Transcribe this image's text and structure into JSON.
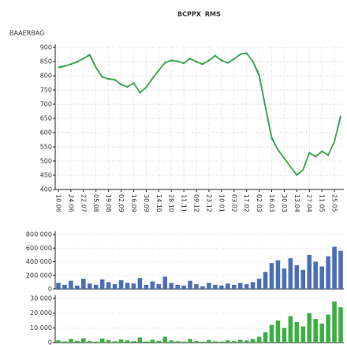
{
  "chart_data": [
    {
      "type": "line",
      "ylabel": "BAAERBAG",
      "categories": [
        "10.06",
        null,
        "24.06",
        null,
        "22.07",
        null,
        "05.08",
        null,
        "19.08",
        null,
        "02.09",
        null,
        "16.09",
        null,
        "30.09",
        null,
        "14.10",
        null,
        "28.10",
        null,
        "11.11",
        null,
        "09.12",
        null,
        "23.12",
        null,
        "10.01",
        null,
        "03.02",
        null,
        "17.02",
        null,
        "02.03",
        null,
        "16.03",
        null,
        "30.03",
        null,
        "13.04",
        null,
        "27.04",
        null,
        "11.05",
        null,
        "25.05",
        null
      ],
      "series": [
        {
          "name": "BCPPX",
          "color": "#2b6e8f",
          "values": [
            830,
            835,
            840,
            850,
            860,
            875,
            830,
            795,
            790,
            785,
            770,
            760,
            775,
            740,
            760,
            790,
            820,
            845,
            855,
            850,
            845,
            860,
            850,
            840,
            855,
            870,
            855,
            845,
            860,
            875,
            880,
            850,
            800,
            690,
            580,
            540,
            510,
            480,
            450,
            470,
            530,
            515,
            535,
            520,
            570,
            660
          ]
        },
        {
          "name": "RMS",
          "color": "#3cb043",
          "values": [
            828,
            833,
            842,
            848,
            862,
            872,
            828,
            797,
            788,
            787,
            768,
            762,
            773,
            742,
            758,
            792,
            818,
            847,
            853,
            852,
            843,
            862,
            848,
            842,
            853,
            872,
            853,
            847,
            858,
            877,
            878,
            852,
            805,
            695,
            585,
            538,
            512,
            478,
            452,
            468,
            528,
            517,
            533,
            522,
            568,
            655
          ]
        }
      ],
      "ylim": [
        400,
        900
      ],
      "yticks": [
        400,
        450,
        500,
        550,
        600,
        650,
        700,
        750,
        800,
        850,
        900
      ],
      "grid": true
    },
    {
      "type": "bar",
      "color": "#4a6fb5",
      "categories": [
        null,
        null,
        null,
        null,
        null,
        null,
        null,
        null,
        null,
        null,
        null,
        null,
        null,
        null,
        null,
        null,
        null,
        null,
        null,
        null,
        null,
        null,
        null,
        null,
        null,
        null,
        null,
        null,
        null,
        null,
        null,
        null,
        null,
        null,
        null,
        null,
        null,
        null,
        null,
        null,
        null,
        null,
        null,
        null,
        null,
        null
      ],
      "values": [
        90000,
        60000,
        120000,
        50000,
        150000,
        80000,
        60000,
        140000,
        100000,
        70000,
        130000,
        90000,
        80000,
        160000,
        60000,
        110000,
        70000,
        180000,
        90000,
        60000,
        50000,
        120000,
        70000,
        40000,
        90000,
        60000,
        50000,
        80000,
        60000,
        90000,
        70000,
        100000,
        150000,
        250000,
        380000,
        420000,
        300000,
        450000,
        350000,
        280000,
        500000,
        400000,
        330000,
        480000,
        620000,
        560000
      ],
      "ylim": [
        0,
        800000
      ],
      "yticks": [
        0,
        {
          "value": 200000,
          "label": "200 000"
        },
        {
          "value": 400000,
          "label": "400 000"
        },
        {
          "value": 600000,
          "label": "600 000"
        },
        {
          "value": 800000,
          "label": "800 000"
        }
      ],
      "grid": true
    },
    {
      "type": "bar",
      "color": "#3cb043",
      "categories": [
        null,
        null,
        null,
        null,
        null,
        null,
        null,
        null,
        null,
        null,
        null,
        null,
        null,
        null,
        null,
        null,
        null,
        null,
        null,
        null,
        null,
        null,
        null,
        null,
        null,
        null,
        null,
        null,
        null,
        null,
        null,
        null,
        null,
        null,
        null,
        null,
        null,
        null,
        null,
        null,
        null,
        null,
        null,
        null,
        null,
        null
      ],
      "values": [
        1500,
        800,
        2500,
        1200,
        3000,
        1000,
        700,
        2800,
        1800,
        900,
        2200,
        1500,
        1000,
        3500,
        800,
        2000,
        1200,
        4000,
        1500,
        900,
        700,
        2500,
        1000,
        600,
        1800,
        900,
        700,
        1500,
        1000,
        2000,
        1500,
        2500,
        4000,
        7000,
        12000,
        15000,
        10000,
        18000,
        14000,
        11000,
        20000,
        16000,
        13000,
        19000,
        28000,
        24000
      ],
      "ylim": [
        0,
        30000
      ],
      "yticks": [
        0,
        {
          "value": 10000,
          "label": "10 000"
        },
        {
          "value": 20000,
          "label": "20 000"
        },
        {
          "value": 30000,
          "label": "30 000"
        }
      ],
      "grid": true
    }
  ]
}
